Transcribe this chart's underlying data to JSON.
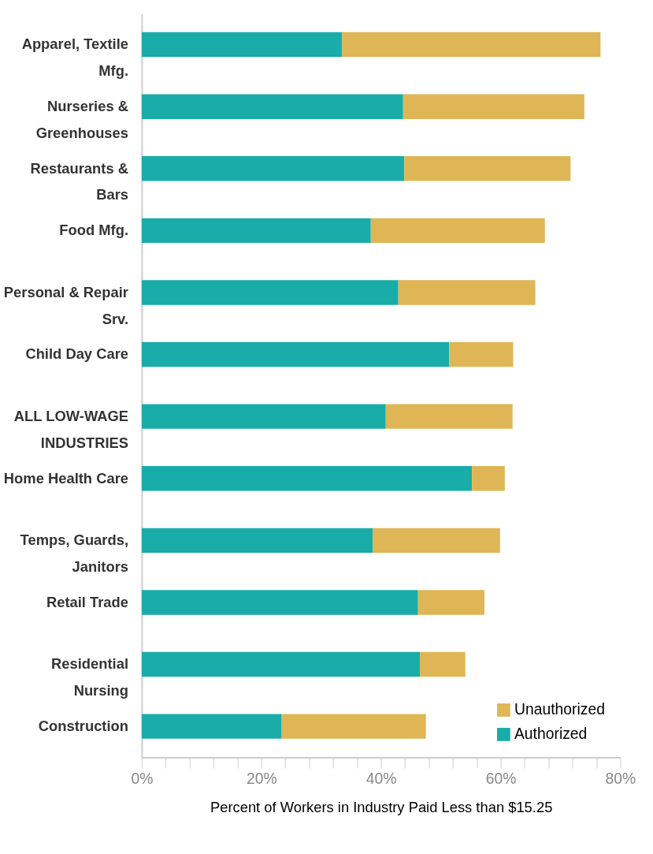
{
  "chart_data": {
    "type": "bar",
    "orientation": "horizontal",
    "stacked": true,
    "categories": [
      "Apparel, Textile Mfg.",
      "Nurseries & Greenhouses",
      "Restaurants & Bars",
      "Food Mfg.",
      "Personal & Repair Srv.",
      "Child Day Care",
      "ALL LOW-WAGE INDUSTRIES",
      "Home Health Care",
      "Temps, Guards, Janitors",
      "Retail Trade",
      "Residential Nursing",
      "Construction"
    ],
    "series": [
      {
        "name": "Authorized",
        "color": "#1aaca9",
        "values": [
          33.5,
          43.7,
          43.9,
          38.3,
          42.9,
          51.4,
          40.8,
          55.2,
          38.6,
          46.2,
          46.5,
          23.4
        ]
      },
      {
        "name": "Unauthorized",
        "color": "#dfb655",
        "values": [
          43.2,
          30.3,
          27.8,
          29.1,
          22.9,
          10.7,
          21.2,
          5.5,
          21.3,
          11.1,
          7.6,
          24.1
        ]
      }
    ],
    "xlabel": "Percent of Workers in Industry Paid Less than $15.25",
    "xlim": [
      0,
      80
    ],
    "xticks": [
      {
        "value": 0,
        "label": "0%"
      },
      {
        "value": 4,
        "label": null
      },
      {
        "value": 8,
        "label": null
      },
      {
        "value": 12,
        "label": null
      },
      {
        "value": 16,
        "label": null
      },
      {
        "value": 20,
        "label": "20%"
      },
      {
        "value": 24,
        "label": null
      },
      {
        "value": 28,
        "label": null
      },
      {
        "value": 32,
        "label": null
      },
      {
        "value": 36,
        "label": null
      },
      {
        "value": 40,
        "label": "40%"
      },
      {
        "value": 44,
        "label": null
      },
      {
        "value": 48,
        "label": null
      },
      {
        "value": 52,
        "label": null
      },
      {
        "value": 56,
        "label": null
      },
      {
        "value": 60,
        "label": "60%"
      },
      {
        "value": 64,
        "label": null
      },
      {
        "value": 68,
        "label": null
      },
      {
        "value": 72,
        "label": null
      },
      {
        "value": 76,
        "label": null
      },
      {
        "value": 80,
        "label": "80%"
      }
    ],
    "grid": false,
    "legend": "bottom right"
  }
}
